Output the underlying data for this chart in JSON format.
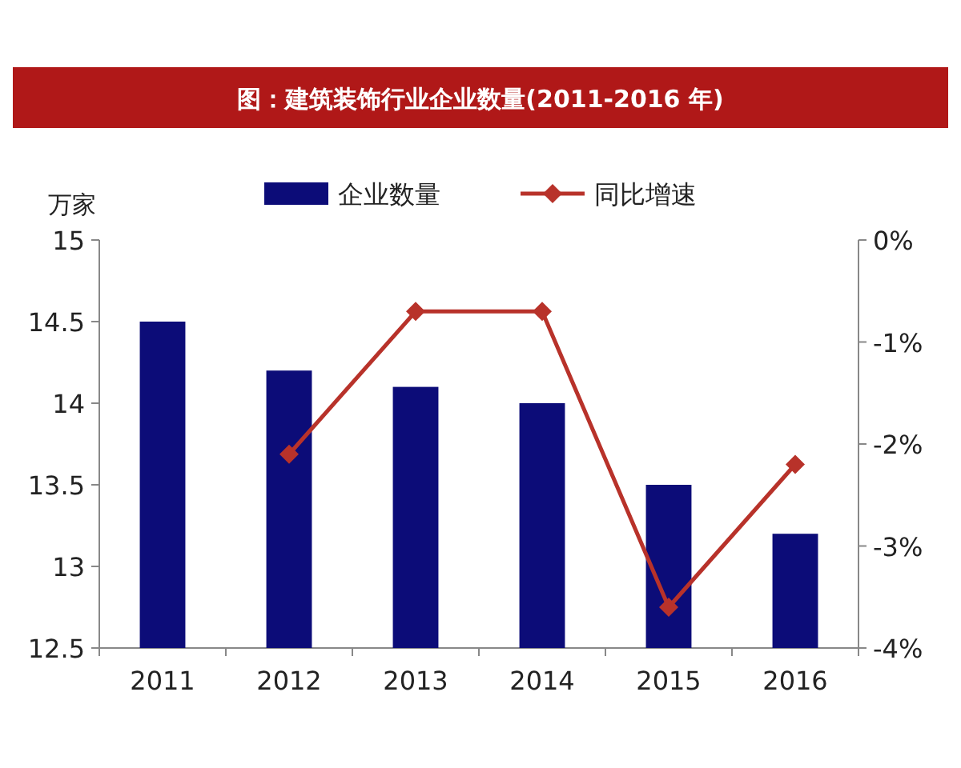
{
  "chart_data": {
    "type": "bar",
    "title": "图：建筑装饰行业企业数量(2011-2016 年)",
    "ylabel": "万家",
    "categories": [
      "2011",
      "2012",
      "2013",
      "2014",
      "2015",
      "2016"
    ],
    "series": [
      {
        "name": "企业数量",
        "color": "#0c0c78",
        "values": [
          14.5,
          14.2,
          14.1,
          14.0,
          13.5,
          13.2
        ]
      },
      {
        "name": "同比增速",
        "type": "line",
        "axis": "y2",
        "color": "#b8322a",
        "values": [
          null,
          -2.1,
          -0.7,
          -0.7,
          -3.6,
          -2.2
        ]
      }
    ],
    "ylim": [
      12.5,
      15
    ],
    "yticks": [
      12.5,
      13,
      13.5,
      14,
      14.5,
      15
    ],
    "y2lim": [
      -4,
      0
    ],
    "y2ticks": [
      {
        "value": 0,
        "label": "0%"
      },
      {
        "value": -1,
        "label": "-1%"
      },
      {
        "value": -2,
        "label": "-2%"
      },
      {
        "value": -3,
        "label": "-3%"
      },
      {
        "value": -4,
        "label": "-4%"
      }
    ],
    "legend": "top",
    "marker": "diamond"
  }
}
